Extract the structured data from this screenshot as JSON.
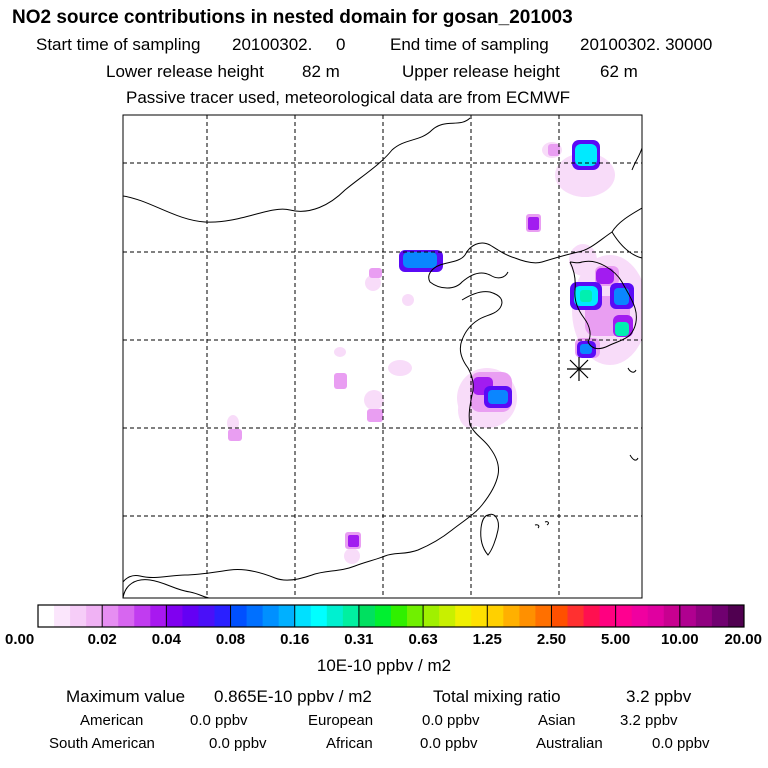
{
  "header": {
    "title": "NO2 source contributions in nested domain for gosan_201003",
    "start_label": "Start time of sampling",
    "start_value": "20100302.     0",
    "end_label": "End time of sampling",
    "end_value": "20100302. 30000",
    "lower_label": "Lower release height",
    "lower_value": "82 m",
    "upper_label": "Upper release height",
    "upper_value": "62 m",
    "note": "Passive tracer used, meteorological data are from ECMWF"
  },
  "map": {
    "receptor_symbol": "asterisk",
    "plume_color_range": [
      "#ffffff",
      "#f2b8f4",
      "#a000ff",
      "#3c00ff",
      "#0088ff",
      "#00ffff"
    ]
  },
  "colorbar": {
    "ticks": [
      "0.00",
      "0.02",
      "0.04",
      "0.08",
      "0.16",
      "0.31",
      "0.63",
      "1.25",
      "2.50",
      "5.00",
      "10.00",
      "20.00"
    ],
    "units": "10E-10 ppbv / m2",
    "colors": [
      "#ffffff",
      "#fbe6fc",
      "#f6cdf8",
      "#f0b2f4",
      "#e68ef2",
      "#d766f0",
      "#c13cf0",
      "#a818f0",
      "#8000f0",
      "#6400f4",
      "#4a10f8",
      "#2a20ff",
      "#0050ff",
      "#0070ff",
      "#0090ff",
      "#00b0ff",
      "#00e0ff",
      "#00ffff",
      "#00f0d0",
      "#00f0a0",
      "#00e060",
      "#00f030",
      "#30f000",
      "#70f000",
      "#a0f000",
      "#c8f000",
      "#f0f000",
      "#ffe000",
      "#ffd000",
      "#ffb000",
      "#ff9000",
      "#ff7000",
      "#ff5000",
      "#ff3030",
      "#ff1050",
      "#ff0080",
      "#ff0090",
      "#f000a0",
      "#e000a0",
      "#c80090",
      "#b00090",
      "#900080",
      "#700070",
      "#500050"
    ]
  },
  "stats": {
    "max_label": "Maximum value",
    "max_value": "0.865E-10 ppbv / m2",
    "total_label": "Total mixing ratio",
    "total_value": "3.2 ppbv",
    "regions": [
      {
        "name": "American",
        "value": "0.0 ppbv"
      },
      {
        "name": "European",
        "value": "0.0 ppbv"
      },
      {
        "name": "Asian",
        "value": "3.2 ppbv"
      },
      {
        "name": "South American",
        "value": "0.0 ppbv"
      },
      {
        "name": "African",
        "value": "0.0 ppbv"
      },
      {
        "name": "Australian",
        "value": "0.0 ppbv"
      }
    ]
  }
}
